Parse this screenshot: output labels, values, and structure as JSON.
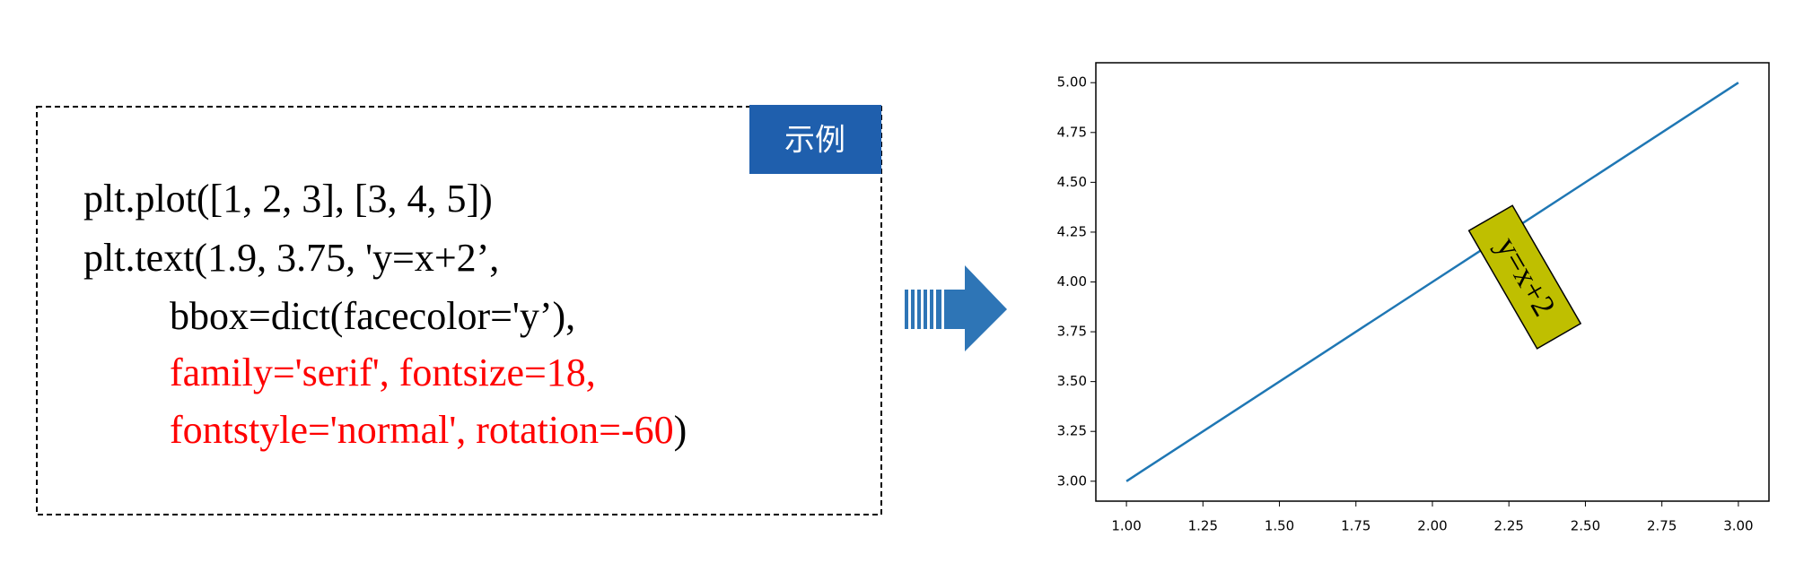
{
  "badge": "示例",
  "code": {
    "lines": [
      [
        {
          "text": "plt.plot([1, 2, 3], [3, 4, 5])",
          "color": "#000000"
        }
      ],
      [
        {
          "text": "plt.text(1.9, 3.75, 'y=x+2’,",
          "color": "#000000"
        }
      ],
      [
        {
          "text": "bbox=dict(facecolor='y’),",
          "color": "#000000"
        }
      ],
      [
        {
          "text": "family='serif', fontsize=18,",
          "color": "#ff0000"
        }
      ],
      [
        {
          "text": "fontstyle='normal', rotation=-60",
          "color": "#ff0000"
        },
        {
          "text": ")",
          "color": "#000000"
        }
      ]
    ]
  },
  "chart_data": {
    "type": "line",
    "x": [
      1,
      2,
      3
    ],
    "values": [
      3,
      4,
      5
    ],
    "color": "#1f77b4",
    "xlim": [
      0.9,
      3.1
    ],
    "ylim": [
      2.9,
      5.1
    ],
    "xticks": [
      {
        "value": 1,
        "label": "1.00"
      },
      {
        "value": 1.25,
        "label": "1.25"
      },
      {
        "value": 1.5,
        "label": "1.50"
      },
      {
        "value": 1.75,
        "label": "1.75"
      },
      {
        "value": 2,
        "label": "2.00"
      },
      {
        "value": 2.25,
        "label": "2.25"
      },
      {
        "value": 2.5,
        "label": "2.50"
      },
      {
        "value": 2.75,
        "label": "2.75"
      },
      {
        "value": 3,
        "label": "3.00"
      }
    ],
    "yticks": [
      {
        "value": 3,
        "label": "3.00"
      },
      {
        "value": 3.25,
        "label": "3.25"
      },
      {
        "value": 3.5,
        "label": "3.50"
      },
      {
        "value": 3.75,
        "label": "3.75"
      },
      {
        "value": 4,
        "label": "4.00"
      },
      {
        "value": 4.25,
        "label": "4.25"
      },
      {
        "value": 4.5,
        "label": "4.50"
      },
      {
        "value": 4.75,
        "label": "4.75"
      },
      {
        "value": 5,
        "label": "5.00"
      }
    ],
    "grid": false,
    "annotation": {
      "text": "y=x+2",
      "x": 1.9,
      "y": 3.75,
      "rotation": -60,
      "color": "#bfbf00"
    }
  }
}
